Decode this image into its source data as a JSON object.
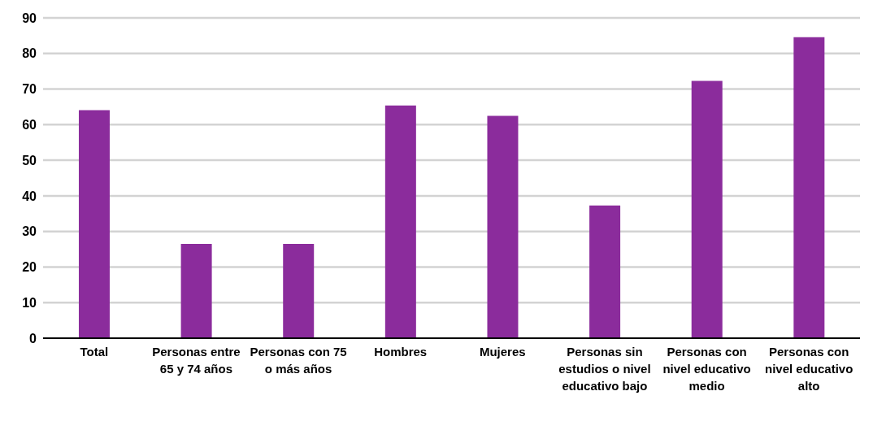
{
  "chart_data": {
    "type": "bar",
    "categories": [
      "Total",
      "Personas entre 65 y 74 años",
      "Personas con 75 o más años",
      "Hombres",
      "Mujeres",
      "Personas sin estudios o nivel educativo bajo",
      "Personas con nivel educativo medio",
      "Personas con nivel educativo alto"
    ],
    "values": [
      64.1,
      26.5,
      26.5,
      65.4,
      62.5,
      37.3,
      72.3,
      84.6
    ],
    "color": "#8b2c9c",
    "ylim": [
      0,
      90
    ],
    "yticks": [
      0,
      10,
      20,
      30,
      40,
      50,
      60,
      70,
      80,
      90
    ],
    "grid": "y"
  }
}
